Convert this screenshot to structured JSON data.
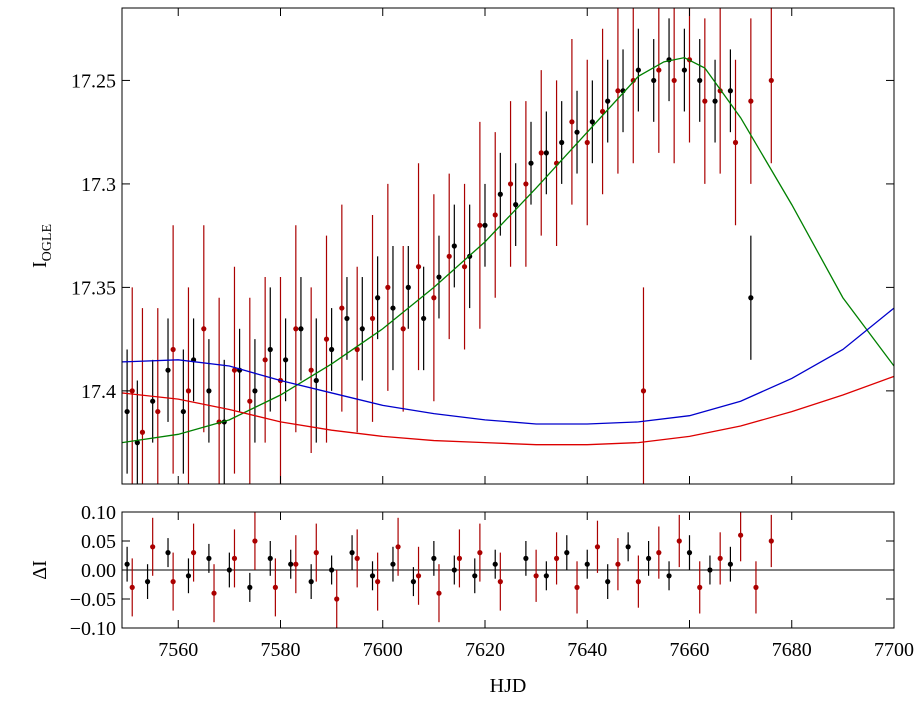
{
  "chart_data": [
    {
      "type": "scatter",
      "panel": "top",
      "xlabel": "HJD",
      "ylabel": "I",
      "ylabel_subscript": "OGLE",
      "ylim": [
        17.445,
        17.215
      ],
      "inverted_y": true,
      "xlim": [
        7549,
        7700
      ],
      "x_ticks": [
        7560,
        7580,
        7600,
        7620,
        7640,
        7660,
        7680,
        7700
      ],
      "y_ticks": [
        17.25,
        17.3,
        17.35,
        17.4
      ],
      "y_tick_labels": [
        "17.25",
        "17.3",
        "17.35",
        "17.4"
      ],
      "grid": false,
      "series": [
        {
          "style": "errorbar",
          "color": "#000000",
          "x": [
            7550,
            7552,
            7555,
            7558,
            7561,
            7563,
            7566,
            7569,
            7572,
            7575,
            7578,
            7581,
            7584,
            7587,
            7590,
            7593,
            7596,
            7599,
            7602,
            7605,
            7608,
            7611,
            7614,
            7617,
            7620,
            7623,
            7626,
            7629,
            7632,
            7635,
            7638,
            7641,
            7644,
            7647,
            7650,
            7653,
            7656,
            7659,
            7662,
            7665,
            7668,
            7672
          ],
          "y": [
            17.41,
            17.425,
            17.405,
            17.39,
            17.41,
            17.385,
            17.4,
            17.415,
            17.39,
            17.4,
            17.38,
            17.385,
            17.37,
            17.395,
            17.38,
            17.365,
            17.37,
            17.355,
            17.36,
            17.35,
            17.365,
            17.345,
            17.33,
            17.335,
            17.32,
            17.305,
            17.31,
            17.29,
            17.285,
            17.28,
            17.275,
            17.27,
            17.26,
            17.255,
            17.245,
            17.25,
            17.24,
            17.245,
            17.25,
            17.26,
            17.255,
            17.355
          ],
          "err": [
            0.03,
            0.03,
            0.02,
            0.025,
            0.03,
            0.02,
            0.025,
            0.03,
            0.02,
            0.025,
            0.03,
            0.02,
            0.025,
            0.03,
            0.02,
            0.02,
            0.025,
            0.02,
            0.03,
            0.02,
            0.025,
            0.02,
            0.02,
            0.025,
            0.02,
            0.02,
            0.02,
            0.02,
            0.02,
            0.02,
            0.02,
            0.02,
            0.02,
            0.02,
            0.02,
            0.02,
            0.02,
            0.02,
            0.02,
            0.02,
            0.02,
            0.03
          ]
        },
        {
          "style": "errorbar",
          "color": "#aa0000",
          "x": [
            7551,
            7553,
            7556,
            7559,
            7562,
            7565,
            7568,
            7571,
            7574,
            7577,
            7580,
            7583,
            7586,
            7589,
            7592,
            7595,
            7598,
            7601,
            7604,
            7607,
            7610,
            7613,
            7616,
            7619,
            7622,
            7625,
            7628,
            7631,
            7634,
            7637,
            7640,
            7643,
            7646,
            7649,
            7651,
            7654,
            7657,
            7660,
            7663,
            7666,
            7669,
            7672,
            7676
          ],
          "y": [
            17.4,
            17.42,
            17.41,
            17.38,
            17.4,
            17.37,
            17.415,
            17.39,
            17.405,
            17.385,
            17.395,
            17.37,
            17.39,
            17.375,
            17.36,
            17.38,
            17.365,
            17.35,
            17.37,
            17.34,
            17.355,
            17.335,
            17.34,
            17.32,
            17.315,
            17.3,
            17.3,
            17.285,
            17.29,
            17.27,
            17.28,
            17.265,
            17.255,
            17.25,
            17.4,
            17.245,
            17.25,
            17.24,
            17.26,
            17.255,
            17.28,
            17.26,
            17.25
          ],
          "err": [
            0.05,
            0.06,
            0.05,
            0.06,
            0.05,
            0.05,
            0.06,
            0.05,
            0.05,
            0.04,
            0.05,
            0.05,
            0.04,
            0.05,
            0.05,
            0.04,
            0.05,
            0.05,
            0.04,
            0.05,
            0.05,
            0.04,
            0.04,
            0.05,
            0.04,
            0.04,
            0.04,
            0.04,
            0.04,
            0.04,
            0.04,
            0.04,
            0.04,
            0.04,
            0.05,
            0.04,
            0.04,
            0.04,
            0.04,
            0.04,
            0.04,
            0.04,
            0.04
          ]
        },
        {
          "style": "line",
          "color": "#008000",
          "x": [
            7549,
            7560,
            7570,
            7580,
            7590,
            7600,
            7610,
            7620,
            7630,
            7640,
            7650,
            7655,
            7659,
            7663,
            7670,
            7680,
            7690,
            7700
          ],
          "y": [
            17.425,
            17.421,
            17.414,
            17.402,
            17.387,
            17.37,
            17.35,
            17.328,
            17.302,
            17.275,
            17.248,
            17.241,
            17.239,
            17.244,
            17.268,
            17.31,
            17.355,
            17.388
          ]
        },
        {
          "style": "line",
          "color": "#0000cc",
          "x": [
            7549,
            7560,
            7570,
            7580,
            7590,
            7600,
            7610,
            7620,
            7630,
            7640,
            7650,
            7660,
            7670,
            7680,
            7690,
            7700
          ],
          "y": [
            17.386,
            17.385,
            17.388,
            17.395,
            17.401,
            17.407,
            17.411,
            17.414,
            17.416,
            17.416,
            17.415,
            17.412,
            17.405,
            17.394,
            17.38,
            17.36
          ]
        },
        {
          "style": "line",
          "color": "#dd0000",
          "x": [
            7549,
            7560,
            7570,
            7580,
            7590,
            7600,
            7610,
            7620,
            7630,
            7640,
            7650,
            7660,
            7670,
            7680,
            7690,
            7700
          ],
          "y": [
            17.401,
            17.404,
            17.409,
            17.415,
            17.419,
            17.422,
            17.424,
            17.425,
            17.426,
            17.426,
            17.425,
            17.422,
            17.417,
            17.41,
            17.402,
            17.393
          ]
        }
      ]
    },
    {
      "type": "scatter",
      "panel": "bottom",
      "xlabel": "HJD",
      "ylabel": "ΔI",
      "ylim": [
        -0.1,
        0.1
      ],
      "xlim": [
        7549,
        7700
      ],
      "x_ticks": [
        7560,
        7580,
        7600,
        7620,
        7640,
        7660,
        7680,
        7700
      ],
      "x_tick_labels": [
        "7560",
        "7580",
        "7600",
        "7620",
        "7640",
        "7660",
        "7680",
        "7700"
      ],
      "y_ticks": [
        0.1,
        0.05,
        0.0,
        -0.05,
        -0.1
      ],
      "y_tick_labels": [
        "0.10",
        "0.05",
        "0.00",
        "−0.05",
        "−0.10"
      ],
      "zero_line": 0,
      "grid": false,
      "series": [
        {
          "style": "errorbar",
          "color": "#000000",
          "x": [
            7550,
            7554,
            7558,
            7562,
            7566,
            7570,
            7574,
            7578,
            7582,
            7586,
            7590,
            7594,
            7598,
            7602,
            7606,
            7610,
            7614,
            7618,
            7622,
            7628,
            7632,
            7636,
            7640,
            7644,
            7648,
            7652,
            7656,
            7660,
            7664,
            7668
          ],
          "y": [
            0.01,
            -0.02,
            0.03,
            -0.01,
            0.02,
            0.0,
            -0.03,
            0.02,
            0.01,
            -0.02,
            0.0,
            0.03,
            -0.01,
            0.01,
            -0.02,
            0.02,
            0.0,
            -0.01,
            0.01,
            0.02,
            -0.01,
            0.03,
            0.01,
            -0.02,
            0.04,
            0.02,
            -0.01,
            0.03,
            0.0,
            0.01
          ],
          "err": [
            0.03,
            0.03,
            0.025,
            0.03,
            0.025,
            0.03,
            0.025,
            0.03,
            0.025,
            0.03,
            0.025,
            0.03,
            0.025,
            0.03,
            0.025,
            0.03,
            0.025,
            0.03,
            0.025,
            0.03,
            0.025,
            0.03,
            0.025,
            0.03,
            0.025,
            0.03,
            0.025,
            0.03,
            0.025,
            0.03
          ]
        },
        {
          "style": "errorbar",
          "color": "#aa0000",
          "x": [
            7551,
            7555,
            7559,
            7563,
            7567,
            7571,
            7575,
            7579,
            7583,
            7587,
            7591,
            7595,
            7599,
            7603,
            7607,
            7611,
            7615,
            7619,
            7623,
            7630,
            7634,
            7638,
            7642,
            7646,
            7650,
            7654,
            7658,
            7662,
            7666,
            7670,
            7673,
            7676
          ],
          "y": [
            -0.03,
            0.04,
            -0.02,
            0.03,
            -0.04,
            0.02,
            0.05,
            -0.03,
            0.01,
            0.03,
            -0.05,
            0.02,
            -0.02,
            0.04,
            -0.01,
            -0.04,
            0.02,
            0.03,
            -0.02,
            -0.01,
            0.02,
            -0.03,
            0.04,
            0.01,
            -0.02,
            0.03,
            0.05,
            -0.03,
            0.02,
            0.06,
            -0.03,
            0.05
          ],
          "err": [
            0.05,
            0.05,
            0.05,
            0.05,
            0.05,
            0.05,
            0.05,
            0.05,
            0.05,
            0.05,
            0.05,
            0.05,
            0.05,
            0.05,
            0.05,
            0.05,
            0.05,
            0.05,
            0.05,
            0.045,
            0.045,
            0.045,
            0.045,
            0.045,
            0.045,
            0.045,
            0.045,
            0.045,
            0.045,
            0.045,
            0.045,
            0.045
          ]
        }
      ]
    }
  ]
}
